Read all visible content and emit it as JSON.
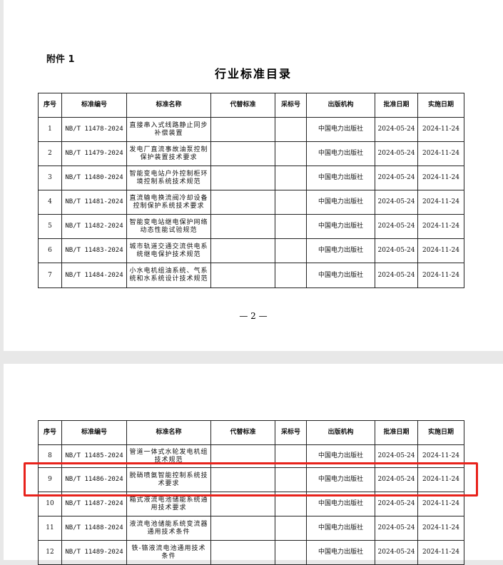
{
  "attachment_label": "附件 1",
  "title": "行业标准目录",
  "page_number": "— 2 —",
  "highlight_color": "#e8221b",
  "headers": [
    "序号",
    "标准编号",
    "标准名称",
    "代替标准",
    "采标号",
    "出版机构",
    "批准日期",
    "实施日期"
  ],
  "rows_page1": [
    {
      "no": "1",
      "code": "NB/T 11478-2024",
      "name": "直接串入式线路静止同步补偿装置",
      "replace": "",
      "adopt": "",
      "publisher": "中国电力出版社",
      "approve": "2024-05-24",
      "effective": "2024-11-24"
    },
    {
      "no": "2",
      "code": "NB/T 11479-2024",
      "name": "发电厂直流事故油泵控制保护装置技术要求",
      "replace": "",
      "adopt": "",
      "publisher": "中国电力出版社",
      "approve": "2024-05-24",
      "effective": "2024-11-24"
    },
    {
      "no": "3",
      "code": "NB/T 11480-2024",
      "name": "智能变电站户外控制柜环境控制系统技术规范",
      "replace": "",
      "adopt": "",
      "publisher": "中国电力出版社",
      "approve": "2024-05-24",
      "effective": "2024-11-24"
    },
    {
      "no": "4",
      "code": "NB/T 11481-2024",
      "name": "直流输电换流阀冷却设备控制保护系统技术要求",
      "replace": "",
      "adopt": "",
      "publisher": "中国电力出版社",
      "approve": "2024-05-24",
      "effective": "2024-11-24"
    },
    {
      "no": "5",
      "code": "NB/T 11482-2024",
      "name": "智能变电站继电保护网络动态性能试验规范",
      "replace": "",
      "adopt": "",
      "publisher": "中国电力出版社",
      "approve": "2024-05-24",
      "effective": "2024-11-24"
    },
    {
      "no": "6",
      "code": "NB/T 11483-2024",
      "name": "城市轨道交通交流供电系统继电保护技术规范",
      "replace": "",
      "adopt": "",
      "publisher": "中国电力出版社",
      "approve": "2024-05-24",
      "effective": "2024-11-24"
    },
    {
      "no": "7",
      "code": "NB/T 11484-2024",
      "name": "小水电机组油系统、气系统和水系统设计技术规范",
      "replace": "",
      "adopt": "",
      "publisher": "中国电力出版社",
      "approve": "2024-05-24",
      "effective": "2024-11-24"
    }
  ],
  "rows_page2": [
    {
      "no": "8",
      "code": "NB/T 11485-2024",
      "name": "管道一体式水轮发电机组技术规范",
      "replace": "",
      "adopt": "",
      "publisher": "中国电力出版社",
      "approve": "2024-05-24",
      "effective": "2024-11-24"
    },
    {
      "no": "9",
      "code": "NB/T 11486-2024",
      "name": "脱硝喷氨智能控制系统技术要求",
      "replace": "",
      "adopt": "",
      "publisher": "中国电力出版社",
      "approve": "2024-05-24",
      "effective": "2024-11-24"
    },
    {
      "no": "10",
      "code": "NB/T 11487-2024",
      "name": "箱式液流电池储能系统通用技术要求",
      "replace": "",
      "adopt": "",
      "publisher": "中国电力出版社",
      "approve": "2024-05-24",
      "effective": "2024-11-24"
    },
    {
      "no": "11",
      "code": "NB/T 11488-2024",
      "name": "液流电池储能系统变流器通用技术条件",
      "replace": "",
      "adopt": "",
      "publisher": "中国电力出版社",
      "approve": "2024-05-24",
      "effective": "2024-11-24"
    },
    {
      "no": "12",
      "code": "NB/T 11489-2024",
      "name": "铁-铬液流电池通用技术条件",
      "replace": "",
      "adopt": "",
      "publisher": "中国电力出版社",
      "approve": "2024-05-24",
      "effective": "2024-11-24"
    }
  ]
}
